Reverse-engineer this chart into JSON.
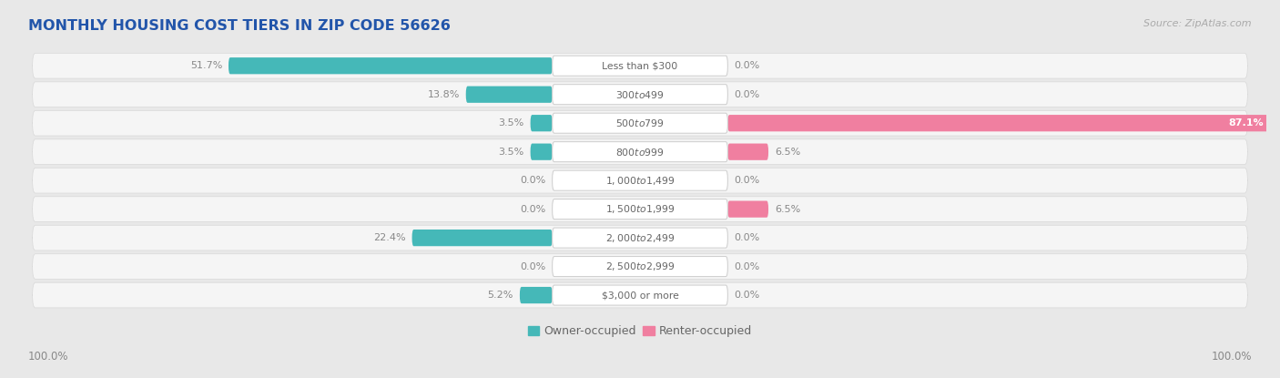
{
  "title": "MONTHLY HOUSING COST TIERS IN ZIP CODE 56626",
  "source": "Source: ZipAtlas.com",
  "categories": [
    "Less than $300",
    "$300 to $499",
    "$500 to $799",
    "$800 to $999",
    "$1,000 to $1,499",
    "$1,500 to $1,999",
    "$2,000 to $2,499",
    "$2,500 to $2,999",
    "$3,000 or more"
  ],
  "owner_values": [
    51.7,
    13.8,
    3.5,
    3.5,
    0.0,
    0.0,
    22.4,
    0.0,
    5.2
  ],
  "renter_values": [
    0.0,
    0.0,
    87.1,
    6.5,
    0.0,
    6.5,
    0.0,
    0.0,
    0.0
  ],
  "owner_color": "#45b8b8",
  "renter_color": "#f07fa0",
  "label_color": "#666666",
  "value_label_color": "#888888",
  "bg_color": "#e8e8e8",
  "row_color": "#f5f5f5",
  "row_edge_color": "#d8d8d8",
  "title_color": "#2255aa",
  "source_color": "#aaaaaa",
  "max_val": 100.0,
  "left_label": "100.0%",
  "right_label": "100.0%",
  "legend_owner": "Owner-occupied",
  "legend_renter": "Renter-occupied"
}
